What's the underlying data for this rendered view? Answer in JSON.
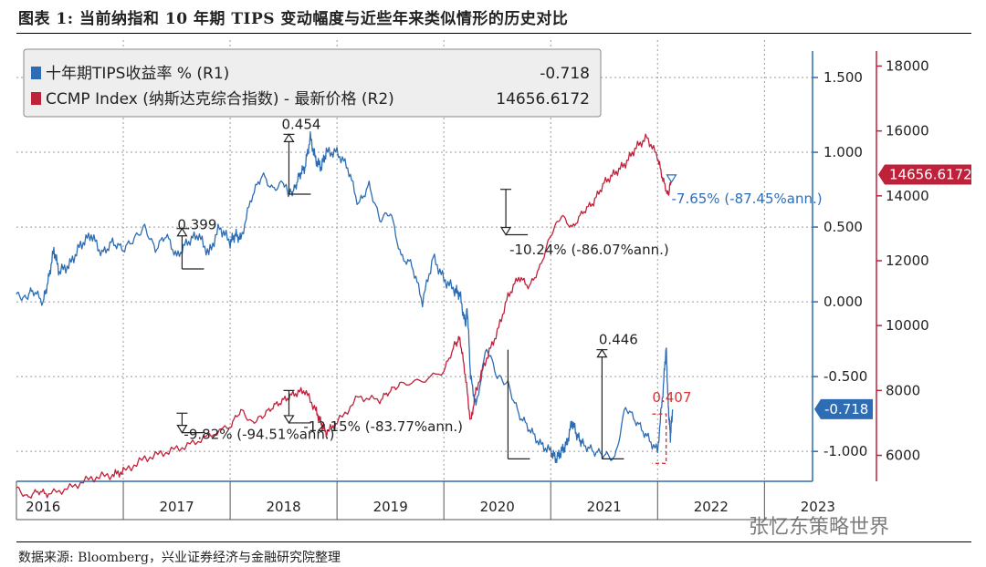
{
  "title": "图表 1:   当前纳指和 10 年期 TIPS 变动幅度与近些年来类似情形的历史对比",
  "source": "数据来源: Bloomberg，兴业证券经济与金融研究院整理",
  "watermark": "张忆东策略世界",
  "chart_data": {
    "type": "line",
    "years": [
      "2016",
      "2017",
      "2018",
      "2019",
      "2020",
      "2021",
      "2022",
      "2023"
    ],
    "right_axis_1": {
      "label": "十年期TIPS收益率 % (R1)",
      "ticks": [
        "1.500",
        "1.000",
        "0.500",
        "0.000",
        "-0.500",
        "-1.000"
      ],
      "tick_values": [
        1.5,
        1.0,
        0.5,
        0.0,
        -0.5,
        -1.0
      ],
      "range": [
        -1.2,
        1.75
      ],
      "color": "#2e6db4"
    },
    "right_axis_2": {
      "label": "CCMP Index (纳斯达克综合指数) - 最新价格 (R2)",
      "ticks": [
        "18000",
        "16000",
        "14000",
        "12000",
        "10000",
        "8000",
        "6000"
      ],
      "tick_values": [
        18000,
        16000,
        14000,
        12000,
        10000,
        8000,
        6000
      ],
      "range": [
        5200,
        18800
      ],
      "color": "#c0213a"
    },
    "legend": [
      {
        "name": "十年期TIPS收益率 % (R1)",
        "value": "-0.718",
        "color": "#2e6db4"
      },
      {
        "name": "CCMP Index (纳斯达克综合指数) - 最新价格 (R2)",
        "value": "14656.6172",
        "color": "#c0213a"
      }
    ],
    "last_value_tags": [
      {
        "value": "14656.6172",
        "color": "#c0213a"
      },
      {
        "value": "-0.718",
        "color": "#2e6db4"
      }
    ],
    "series": [
      {
        "name": "TIPS",
        "axis": "r1",
        "t": [
          2016.0,
          2016.08,
          2016.15,
          2016.25,
          2016.3,
          2016.35,
          2016.4,
          2016.5,
          2016.6,
          2016.7,
          2016.8,
          2016.9,
          2017.0,
          2017.1,
          2017.2,
          2017.3,
          2017.4,
          2017.5,
          2017.6,
          2017.7,
          2017.8,
          2017.9,
          2018.0,
          2018.05,
          2018.1,
          2018.2,
          2018.3,
          2018.4,
          2018.5,
          2018.55,
          2018.6,
          2018.65,
          2018.7,
          2018.75,
          2018.8,
          2018.85,
          2018.9,
          2019.0,
          2019.1,
          2019.2,
          2019.3,
          2019.4,
          2019.5,
          2019.6,
          2019.7,
          2019.8,
          2019.9,
          2020.0,
          2020.1,
          2020.15,
          2020.2,
          2020.22,
          2020.25,
          2020.3,
          2020.4,
          2020.5,
          2020.6,
          2020.7,
          2020.8,
          2020.9,
          2021.0,
          2021.05,
          2021.1,
          2021.15,
          2021.2,
          2021.25,
          2021.3,
          2021.4,
          2021.5,
          2021.6,
          2021.7,
          2021.8,
          2021.9,
          2022.0,
          2022.05,
          2022.08,
          2022.1,
          2022.12,
          2022.14
        ],
        "values": [
          0.05,
          0.02,
          0.08,
          0.0,
          0.15,
          0.35,
          0.2,
          0.25,
          0.38,
          0.45,
          0.32,
          0.4,
          0.35,
          0.42,
          0.5,
          0.35,
          0.45,
          0.3,
          0.4,
          0.45,
          0.32,
          0.5,
          0.4,
          0.45,
          0.42,
          0.7,
          0.85,
          0.75,
          0.8,
          0.72,
          0.75,
          0.85,
          0.9,
          1.1,
          0.95,
          0.9,
          1.0,
          1.0,
          0.9,
          0.65,
          0.78,
          0.55,
          0.6,
          0.3,
          0.25,
          0.0,
          0.3,
          0.15,
          0.08,
          0.05,
          -0.15,
          -0.05,
          -0.5,
          -0.7,
          -0.3,
          -0.5,
          -0.55,
          -0.75,
          -0.85,
          -0.95,
          -1.0,
          -1.05,
          -1.0,
          -0.95,
          -0.8,
          -0.9,
          -0.95,
          -1.0,
          -1.02,
          -1.05,
          -0.7,
          -0.8,
          -0.9,
          -1.0,
          -0.6,
          -0.3,
          -0.7,
          -0.9,
          -0.72
        ],
        "color": "#2e6db4"
      },
      {
        "name": "CCMP",
        "axis": "r2",
        "t": [
          2016.0,
          2016.1,
          2016.2,
          2016.3,
          2016.5,
          2016.7,
          2016.9,
          2017.0,
          2017.2,
          2017.4,
          2017.6,
          2017.8,
          2018.0,
          2018.1,
          2018.2,
          2018.3,
          2018.4,
          2018.5,
          2018.6,
          2018.7,
          2018.8,
          2018.85,
          2018.9,
          2019.0,
          2019.2,
          2019.4,
          2019.5,
          2019.6,
          2019.8,
          2020.0,
          2020.1,
          2020.15,
          2020.2,
          2020.25,
          2020.3,
          2020.4,
          2020.5,
          2020.6,
          2020.7,
          2020.8,
          2020.9,
          2021.0,
          2021.1,
          2021.2,
          2021.3,
          2021.4,
          2021.5,
          2021.6,
          2021.7,
          2021.8,
          2021.9,
          2022.0,
          2022.05,
          2022.1,
          2022.12,
          2022.14
        ],
        "values": [
          5000,
          4700,
          4900,
          4800,
          5000,
          5300,
          5400,
          5500,
          5900,
          6100,
          6300,
          6600,
          6900,
          7400,
          7000,
          7200,
          7500,
          7700,
          7900,
          8000,
          7400,
          7000,
          6700,
          7000,
          7800,
          7700,
          8000,
          8200,
          8300,
          8600,
          9400,
          9600,
          8500,
          7000,
          8000,
          9000,
          9800,
          10900,
          11500,
          11200,
          11800,
          12800,
          13400,
          13000,
          13500,
          13800,
          14400,
          14700,
          15000,
          15500,
          15800,
          15200,
          14500,
          14000,
          14400,
          14656.6172
        ],
        "color": "#c0213a"
      }
    ],
    "annotations_tips": [
      {
        "label": "0.399"
      },
      {
        "label": "0.454"
      },
      {
        "label": "-7.65% (-87.45%ann.)"
      },
      {
        "label": "0.446"
      }
    ],
    "annotations_ccmp": [
      {
        "label": "-10.24% (-86.07%ann.)"
      },
      {
        "label": "-9.82% (-94.51%ann.)"
      },
      {
        "label": "-12.15% (-83.77%ann.)"
      },
      {
        "label": "0.407"
      }
    ]
  }
}
